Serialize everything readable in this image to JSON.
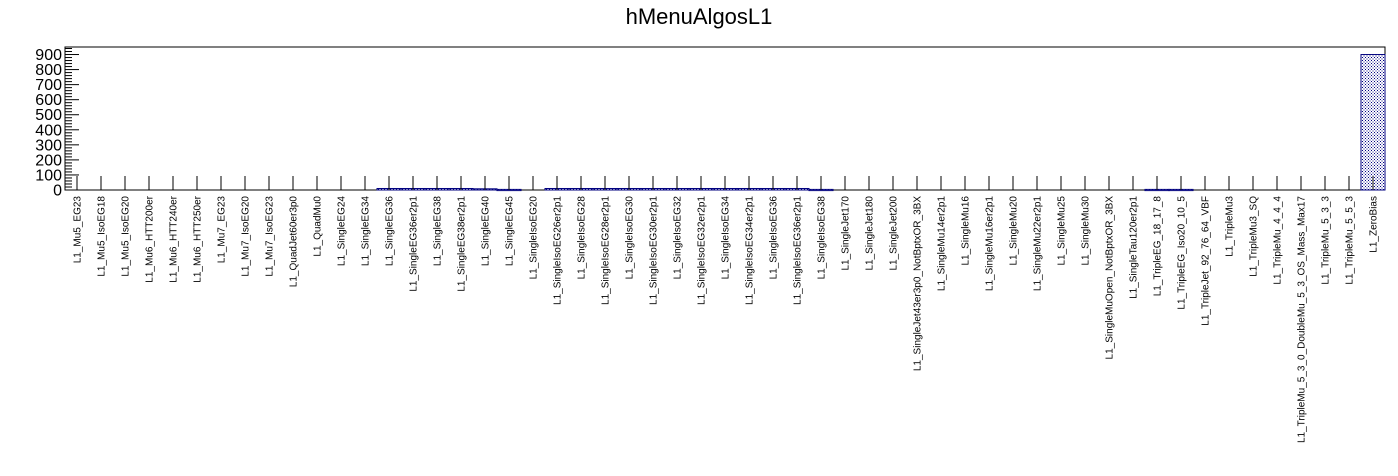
{
  "chart_data": {
    "type": "bar",
    "title": "hMenuAlgosL1",
    "xlabel": "",
    "ylabel": "",
    "ylim": [
      0,
      950
    ],
    "yticks": [
      0,
      100,
      200,
      300,
      400,
      500,
      600,
      700,
      800,
      900
    ],
    "grid": false,
    "legend": "none",
    "bar_fill": "#00007f",
    "bar_pattern": "hatched",
    "categories": [
      "L1_Mu5_EG23",
      "L1_Mu5_IsoEG18",
      "L1_Mu5_IsoEG20",
      "L1_Mu6_HTT200er",
      "L1_Mu6_HTT240er",
      "L1_Mu6_HTT250er",
      "L1_Mu7_EG23",
      "L1_Mu7_IsoEG20",
      "L1_Mu7_IsoEG23",
      "L1_QuadJet60er3p0",
      "L1_QuadMu0",
      "L1_SingleEG24",
      "L1_SingleEG34",
      "L1_SingleEG36",
      "L1_SingleEG36er2p1",
      "L1_SingleEG38",
      "L1_SingleEG38er2p1",
      "L1_SingleEG40",
      "L1_SingleEG45",
      "L1_SingleIsoEG20",
      "L1_SingleIsoEG26er2p1",
      "L1_SingleIsoEG28",
      "L1_SingleIsoEG28er2p1",
      "L1_SingleIsoEG30",
      "L1_SingleIsoEG30er2p1",
      "L1_SingleIsoEG32",
      "L1_SingleIsoEG32er2p1",
      "L1_SingleIsoEG34",
      "L1_SingleIsoEG34er2p1",
      "L1_SingleIsoEG36",
      "L1_SingleIsoEG36er2p1",
      "L1_SingleIsoEG38",
      "L1_SingleJet170",
      "L1_SingleJet180",
      "L1_SingleJet200",
      "L1_SingleJet43er3p0_NotBptxOR_3BX",
      "L1_SingleMu14er2p1",
      "L1_SingleMu16",
      "L1_SingleMu16er2p1",
      "L1_SingleMu20",
      "L1_SingleMu22er2p1",
      "L1_SingleMu25",
      "L1_SingleMu30",
      "L1_SingleMuOpen_NotBptxOR_3BX",
      "L1_SingleTau120er2p1",
      "L1_TripleEG_18_17_8",
      "L1_TripleEG_Iso20_10_5",
      "L1_TripleJet_92_76_64_VBF",
      "L1_TripleMu3",
      "L1_TripleMu3_SQ",
      "L1_TripleMu_4_4_4",
      "L1_TripleMu_5_3_0_DoubleMu_5_3_OS_Mass_Max17",
      "L1_TripleMu_5_3_3",
      "L1_TripleMu_5_5_3",
      "L1_ZeroBias"
    ],
    "values": [
      0,
      0,
      0,
      0,
      0,
      0,
      0,
      0,
      0,
      0,
      0,
      0,
      0,
      10,
      10,
      10,
      10,
      8,
      4,
      0,
      10,
      10,
      10,
      10,
      10,
      10,
      10,
      10,
      10,
      10,
      10,
      4,
      0,
      0,
      0,
      0,
      0,
      0,
      0,
      0,
      0,
      0,
      0,
      0,
      0,
      4,
      4,
      0,
      0,
      0,
      0,
      0,
      0,
      0,
      900
    ]
  }
}
